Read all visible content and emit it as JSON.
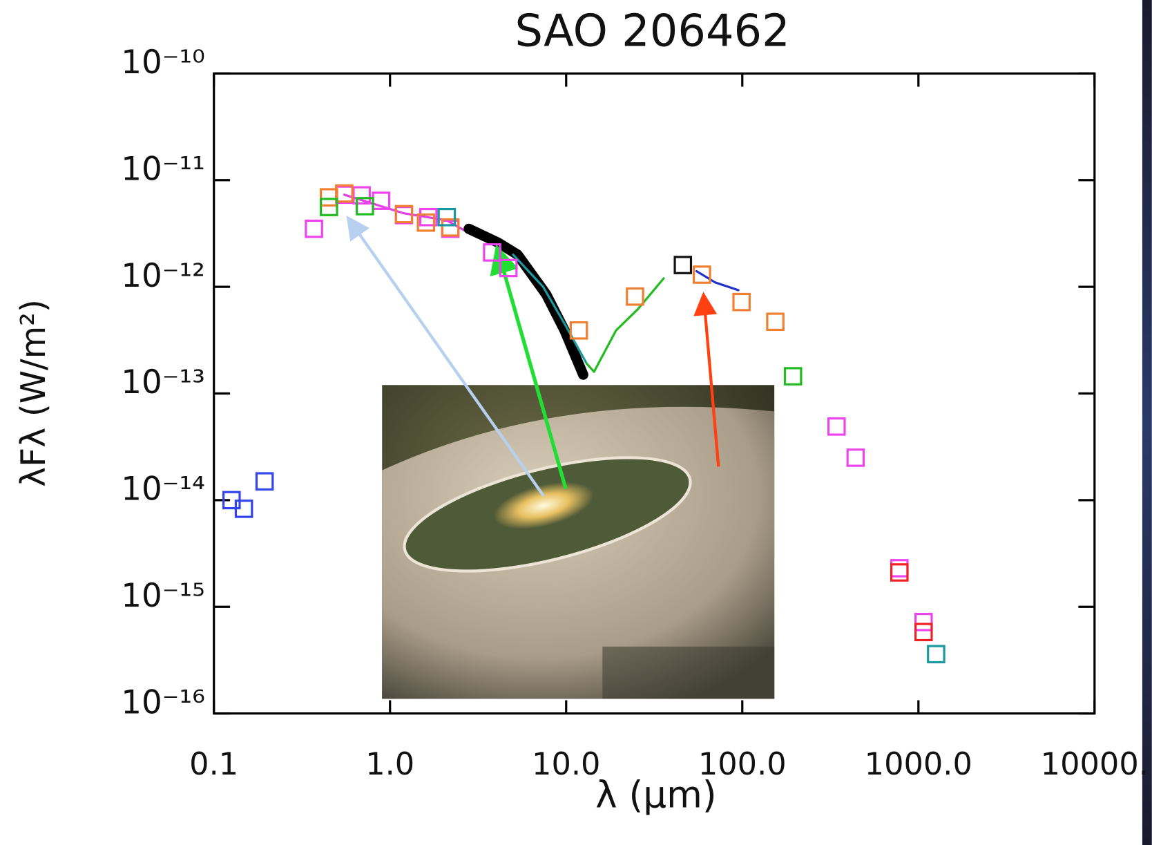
{
  "chart_data": {
    "type": "scatter",
    "title": "SAO 206462",
    "x_label": "λ (μm)",
    "y_label": "λFλ (W/m²)",
    "xscale": "log",
    "yscale": "log",
    "xlim": [
      0.1,
      10000
    ],
    "ylim": [
      1e-16,
      1e-10
    ],
    "xticks": [
      0.1,
      {
        "value": 1,
        "label": "1.0"
      },
      {
        "value": 10,
        "label": "10.0"
      },
      {
        "value": 100,
        "label": "100.0"
      },
      {
        "value": 1000,
        "label": "1000.0"
      },
      {
        "value": 10000,
        "label": "10000."
      }
    ],
    "yticks": [
      {
        "value": 1e-16,
        "label": "10⁻¹⁶"
      },
      {
        "value": 1e-15,
        "label": "10⁻¹⁵"
      },
      {
        "value": 1e-14,
        "label": "10⁻¹⁴"
      },
      {
        "value": 1e-13,
        "label": "10⁻¹³"
      },
      {
        "value": 1e-12,
        "label": "10⁻¹²"
      },
      {
        "value": 1e-11,
        "label": "10⁻¹¹"
      },
      {
        "value": 1e-10,
        "label": "10⁻¹⁰"
      }
    ],
    "series": [
      {
        "type": "line",
        "color": "#e040e0",
        "x": [
          0.55,
          1.19,
          2.1,
          2.8,
          4.1
        ],
        "values": [
          7.3e-12,
          4.9e-12,
          4.2e-12,
          3.2e-12,
          2.7e-12
        ]
      },
      {
        "type": "line",
        "color": "#000000",
        "x": [
          2.8,
          4.1,
          5.3,
          7.7,
          9.8,
          12.5
        ],
        "values": [
          3.5e-12,
          2.6e-12,
          2e-12,
          8.5e-13,
          3.9e-13,
          1.5e-13
        ]
      },
      {
        "type": "line",
        "color": "#1a9aa0",
        "x": [
          5.0,
          7.4,
          9.8,
          13.1
        ],
        "values": [
          2e-12,
          1e-12,
          4.5e-13,
          1.9e-13
        ]
      },
      {
        "type": "line",
        "color": "#22bb22",
        "x": [
          13.1,
          14.4,
          19.2,
          25.6,
          35.8
        ],
        "values": [
          1.9e-13,
          1.6e-13,
          3.9e-13,
          6.2e-13,
          1.2e-12
        ]
      },
      {
        "type": "line",
        "color": "#2233cc",
        "x": [
          55,
          70,
          95
        ],
        "values": [
          1.4e-12,
          1.1e-12,
          9.3e-13
        ]
      },
      {
        "type": "scatter",
        "color": "#3344ee",
        "x": [
          0.126,
          0.148,
          0.194
        ],
        "values": [
          1e-14,
          8.3e-15,
          1.5e-14
        ]
      },
      {
        "type": "scatter",
        "color": "#ee44ee",
        "x": [
          0.37,
          0.55,
          0.69,
          0.89,
          1.2,
          1.65,
          2.2,
          3.8,
          4.7,
          343,
          440,
          780,
          1070
        ],
        "values": [
          3.5e-12,
          7.3e-12,
          7.2e-12,
          6.4e-12,
          4.7e-12,
          4.5e-12,
          3.5e-12,
          2.1e-12,
          1.5e-12,
          4.9e-14,
          2.5e-14,
          2.3e-15,
          7.2e-16
        ]
      },
      {
        "type": "scatter",
        "color": "#f08030",
        "x": [
          0.45,
          0.55,
          1.2,
          1.6,
          2.2,
          11.8,
          24.6,
          59,
          99,
          154
        ],
        "values": [
          6.9e-12,
          7.5e-12,
          4.8e-12,
          4e-12,
          3.6e-12,
          3.9e-13,
          8.1e-13,
          1.3e-12,
          7.2e-13,
          4.7e-13
        ]
      },
      {
        "type": "scatter",
        "color": "#22bb22",
        "x": [
          0.45,
          0.72,
          194
        ],
        "values": [
          5.6e-12,
          5.7e-12,
          1.45e-13
        ]
      },
      {
        "type": "scatter",
        "color": "#1a9aa0",
        "x": [
          2.1,
          1260
        ],
        "values": [
          4.5e-12,
          3.6e-16
        ]
      },
      {
        "type": "scatter",
        "color": "#111111",
        "x": [
          46
        ],
        "values": [
          1.6e-12
        ]
      },
      {
        "type": "scatter",
        "color": "#ee2222",
        "x": [
          780,
          1070
        ],
        "values": [
          2.1e-15,
          5.8e-16
        ]
      }
    ]
  }
}
